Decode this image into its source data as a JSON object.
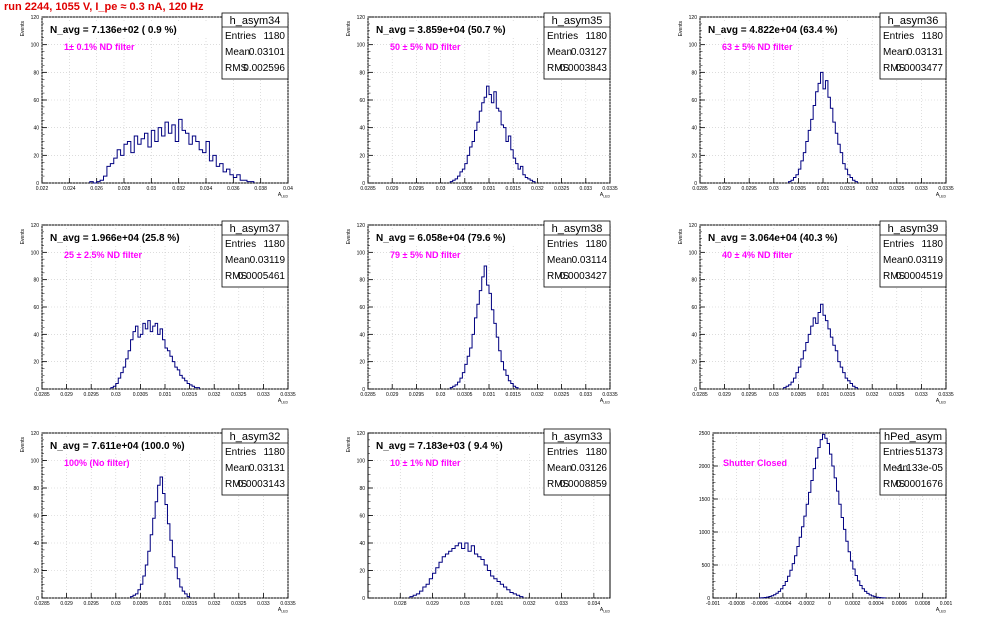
{
  "page": {
    "title": "run 2244,  1055 V, I_pe ≈ 0.3 nA, 120 Hz"
  },
  "chart_data": [
    {
      "type": "histogram",
      "name": "h_asym34",
      "ylabel": "Events",
      "xlabel": "A_LED",
      "xlim": [
        0.022,
        0.04
      ],
      "ylim": [
        0,
        120
      ],
      "xticks": [
        "0.022",
        "0.024",
        "0.026",
        "0.028",
        "0.03",
        "0.032",
        "0.034",
        "0.036",
        "0.038",
        "0.04"
      ],
      "yticks": [
        "0",
        "20",
        "40",
        "60",
        "80",
        "100",
        "120"
      ],
      "stats": {
        "Entries": "1180",
        "Mean": "0.03101",
        "RMS": "0.002596"
      },
      "title_text": "N_avg = 7.136e+02 ( 0.9 %)",
      "annotation": "1± 0.1% ND filter",
      "annotation_color": "#ff00ff",
      "bins": {
        "start": 0.0255,
        "width": 0.00025,
        "values": [
          1,
          0,
          1,
          2,
          5,
          12,
          14,
          18,
          24,
          20,
          28,
          30,
          22,
          34,
          28,
          32,
          36,
          26,
          38,
          30,
          40,
          34,
          44,
          36,
          42,
          30,
          46,
          38,
          36,
          28,
          34,
          30,
          24,
          22,
          30,
          16,
          20,
          12,
          14,
          8,
          10,
          6,
          4,
          6,
          2,
          2,
          1,
          1
        ]
      }
    },
    {
      "type": "histogram",
      "name": "h_asym35",
      "ylabel": "Events",
      "xlabel": "A_LED",
      "xlim": [
        0.0285,
        0.0335
      ],
      "ylim": [
        0,
        120
      ],
      "xticks": [
        "0.0285",
        "0.029",
        "0.0295",
        "0.03",
        "0.0305",
        "0.031",
        "0.0315",
        "0.032",
        "0.0325",
        "0.033",
        "0.0335"
      ],
      "yticks": [
        "0",
        "20",
        "40",
        "60",
        "80",
        "100",
        "120"
      ],
      "stats": {
        "Entries": "1180",
        "Mean": "0.03127",
        "RMS": "0.0003843"
      },
      "title_text": "N_avg = 3.859e+04 (50.7 %)",
      "annotation": "50 ± 5% ND filter",
      "annotation_color": "#ff00ff",
      "bins": {
        "start": 0.0302,
        "width": 5e-05,
        "values": [
          1,
          2,
          3,
          5,
          8,
          10,
          14,
          20,
          26,
          30,
          38,
          44,
          52,
          58,
          62,
          70,
          64,
          58,
          66,
          54,
          52,
          42,
          40,
          30,
          34,
          24,
          18,
          14,
          10,
          12,
          6,
          4,
          3,
          2,
          1
        ]
      }
    },
    {
      "type": "histogram",
      "name": "h_asym36",
      "ylabel": "Events",
      "xlabel": "A_LED",
      "xlim": [
        0.0285,
        0.0335
      ],
      "ylim": [
        0,
        120
      ],
      "xticks": [
        "0.0285",
        "0.029",
        "0.0295",
        "0.03",
        "0.0305",
        "0.031",
        "0.0315",
        "0.032",
        "0.0325",
        "0.033",
        "0.0335"
      ],
      "yticks": [
        "0",
        "20",
        "40",
        "60",
        "80",
        "100",
        "120"
      ],
      "stats": {
        "Entries": "1180",
        "Mean": "0.03131",
        "RMS": "0.0003477"
      },
      "title_text": "N_avg = 4.822e+04 (63.4 %)",
      "annotation": "63 ± 5% ND filter",
      "annotation_color": "#ff00ff",
      "bins": {
        "start": 0.0303,
        "width": 5e-05,
        "values": [
          1,
          2,
          4,
          6,
          10,
          16,
          22,
          30,
          38,
          46,
          56,
          66,
          72,
          80,
          68,
          74,
          62,
          54,
          44,
          36,
          28,
          22,
          14,
          10,
          6,
          4,
          2,
          1
        ]
      }
    },
    {
      "type": "histogram",
      "name": "h_asym37",
      "ylabel": "Events",
      "xlabel": "A_LED",
      "xlim": [
        0.0285,
        0.0335
      ],
      "ylim": [
        0,
        120
      ],
      "xticks": [
        "0.0285",
        "0.029",
        "0.0295",
        "0.03",
        "0.0305",
        "0.031",
        "0.0315",
        "0.032",
        "0.0325",
        "0.033",
        "0.0335"
      ],
      "yticks": [
        "0",
        "20",
        "40",
        "60",
        "80",
        "100",
        "120"
      ],
      "stats": {
        "Entries": "1180",
        "Mean": "0.03119",
        "RMS": "0.0005461"
      },
      "title_text": "N_avg = 1.966e+04 (25.8 %)",
      "annotation": "25 ± 2.5% ND filter",
      "annotation_color": "#ff00ff",
      "bins": {
        "start": 0.0299,
        "width": 5e-05,
        "values": [
          1,
          2,
          4,
          8,
          12,
          16,
          22,
          28,
          36,
          42,
          46,
          38,
          40,
          48,
          44,
          50,
          42,
          46,
          48,
          40,
          44,
          36,
          30,
          28,
          24,
          20,
          16,
          14,
          10,
          8,
          6,
          4,
          3,
          2,
          1,
          1
        ]
      }
    },
    {
      "type": "histogram",
      "name": "h_asym38",
      "ylabel": "Events",
      "xlabel": "A_LED",
      "xlim": [
        0.0285,
        0.0335
      ],
      "ylim": [
        0,
        120
      ],
      "xticks": [
        "0.0285",
        "0.029",
        "0.0295",
        "0.03",
        "0.0305",
        "0.031",
        "0.0315",
        "0.032",
        "0.0325",
        "0.033",
        "0.0335"
      ],
      "yticks": [
        "0",
        "20",
        "40",
        "60",
        "80",
        "100",
        "120"
      ],
      "stats": {
        "Entries": "1180",
        "Mean": "0.03114",
        "RMS": "0.0003427"
      },
      "title_text": "N_avg = 6.058e+04 (79.6 %)",
      "annotation": "79 ± 5% ND filter",
      "annotation_color": "#ff00ff",
      "bins": {
        "start": 0.0302,
        "width": 5e-05,
        "values": [
          1,
          2,
          3,
          5,
          8,
          12,
          18,
          24,
          30,
          40,
          52,
          62,
          72,
          82,
          90,
          76,
          70,
          58,
          48,
          38,
          28,
          20,
          14,
          10,
          6,
          4,
          2,
          1
        ]
      }
    },
    {
      "type": "histogram",
      "name": "h_asym39",
      "ylabel": "Events",
      "xlabel": "A_LED",
      "xlim": [
        0.0285,
        0.0335
      ],
      "ylim": [
        0,
        120
      ],
      "xticks": [
        "0.0285",
        "0.029",
        "0.0295",
        "0.03",
        "0.0305",
        "0.031",
        "0.0315",
        "0.032",
        "0.0325",
        "0.033",
        "0.0335"
      ],
      "yticks": [
        "0",
        "20",
        "40",
        "60",
        "80",
        "100",
        "120"
      ],
      "stats": {
        "Entries": "1180",
        "Mean": "0.03119",
        "RMS": "0.0004519"
      },
      "title_text": "N_avg = 3.064e+04 (40.3 %)",
      "annotation": "40 ± 4% ND filter",
      "annotation_color": "#ff00ff",
      "bins": {
        "start": 0.0302,
        "width": 5e-05,
        "values": [
          1,
          2,
          3,
          5,
          8,
          12,
          16,
          22,
          28,
          34,
          40,
          46,
          52,
          48,
          56,
          62,
          54,
          50,
          44,
          38,
          32,
          28,
          20,
          16,
          12,
          8,
          6,
          4,
          2,
          1
        ]
      }
    },
    {
      "type": "histogram",
      "name": "h_asym32",
      "ylabel": "Events",
      "xlabel": "A_LED",
      "xlim": [
        0.0285,
        0.0335
      ],
      "ylim": [
        0,
        120
      ],
      "xticks": [
        "0.0285",
        "0.029",
        "0.0295",
        "0.03",
        "0.0305",
        "0.031",
        "0.0315",
        "0.032",
        "0.0325",
        "0.033",
        "0.0335"
      ],
      "yticks": [
        "0",
        "20",
        "40",
        "60",
        "80",
        "100",
        "120"
      ],
      "stats": {
        "Entries": "1180",
        "Mean": "0.03131",
        "RMS": "0.0003143"
      },
      "title_text": "N_avg = 7.611e+04 (100.0 %)",
      "annotation": "100% (No filter)",
      "annotation_color": "#ff00ff",
      "bins": {
        "start": 0.0303,
        "width": 5e-05,
        "values": [
          1,
          2,
          3,
          6,
          10,
          16,
          24,
          34,
          46,
          58,
          70,
          82,
          88,
          76,
          68,
          54,
          42,
          30,
          22,
          14,
          8,
          5,
          3,
          1
        ]
      }
    },
    {
      "type": "histogram",
      "name": "h_asym33",
      "ylabel": "Events",
      "xlabel": "A_LED",
      "xlim": [
        0.027,
        0.0345
      ],
      "ylim": [
        0,
        120
      ],
      "xticks": [
        "0.028",
        "0.029",
        "0.03",
        "0.031",
        "0.032",
        "0.033",
        "0.034"
      ],
      "yticks": [
        "0",
        "20",
        "40",
        "60",
        "80",
        "100",
        "120"
      ],
      "stats": {
        "Entries": "1180",
        "Mean": "0.03126",
        "RMS": "0.0008859"
      },
      "title_text": "N_avg = 7.183e+03 ( 9.4 %)",
      "annotation": "10 ± 1% ND filter",
      "annotation_color": "#ff00ff",
      "bins": {
        "start": 0.0283,
        "width": 0.0001,
        "values": [
          1,
          2,
          3,
          5,
          8,
          10,
          14,
          18,
          22,
          26,
          30,
          32,
          34,
          36,
          38,
          40,
          36,
          40,
          34,
          38,
          32,
          30,
          28,
          24,
          20,
          16,
          14,
          12,
          10,
          8,
          6,
          4,
          3,
          2,
          1
        ]
      }
    },
    {
      "type": "histogram",
      "name": "hPed_asym",
      "ylabel": "",
      "xlabel": "A_LED",
      "xlim": [
        -0.001,
        0.001
      ],
      "ylim": [
        0,
        2500
      ],
      "xticks": [
        "-0.001",
        "-0.0008",
        "-0.0006",
        "-0.0004",
        "-0.0002",
        "0",
        "0.0002",
        "0.0004",
        "0.0006",
        "0.0008",
        "0.001"
      ],
      "yticks": [
        "0",
        "500",
        "1000",
        "1500",
        "2000",
        "2500"
      ],
      "stats": {
        "Entries": "51373",
        "Mean": "-1.133e-05",
        "RMS": "0.0001676"
      },
      "title_text": "",
      "annotation": "Shutter Closed",
      "annotation_color": "#ff00ff",
      "bins": {
        "start": -0.0006,
        "width": 2e-05,
        "values": [
          2,
          4,
          8,
          14,
          22,
          34,
          50,
          72,
          100,
          140,
          190,
          250,
          330,
          420,
          520,
          640,
          780,
          920,
          1080,
          1240,
          1420,
          1600,
          1780,
          1960,
          2120,
          2280,
          2400,
          2480,
          2420,
          2340,
          2180,
          2000,
          1820,
          1620,
          1420,
          1220,
          1040,
          860,
          700,
          560,
          440,
          340,
          260,
          190,
          140,
          100,
          70,
          48,
          32,
          20,
          12,
          8,
          4,
          2
        ]
      }
    }
  ]
}
